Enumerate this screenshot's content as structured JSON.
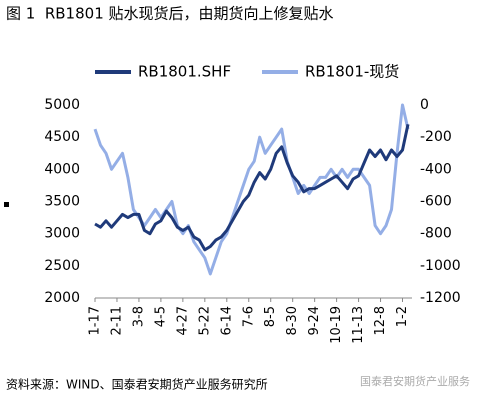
{
  "chart_data": {
    "type": "line",
    "title": "图 1  RB1801 贴水现货后，由期货向上修复贴水",
    "source": "资料来源：WIND、国泰君安期货产业服务研究所",
    "watermark": "国泰君安期货产业服务",
    "categories": [
      "1-17",
      null,
      null,
      null,
      "2-11",
      null,
      null,
      null,
      "3-8",
      null,
      null,
      null,
      "4-5",
      null,
      null,
      null,
      "4-27",
      null,
      null,
      null,
      "5-22",
      null,
      null,
      null,
      "6-14",
      null,
      null,
      null,
      "7-6",
      null,
      null,
      null,
      "8-5",
      null,
      null,
      null,
      "8-30",
      null,
      null,
      null,
      "9-24",
      null,
      null,
      null,
      "10-19",
      null,
      null,
      null,
      "11-13",
      null,
      null,
      null,
      "12-8",
      null,
      null,
      null,
      "1-2",
      null
    ],
    "series": [
      {
        "name": "RB1801.SHF",
        "color": "#1f3a7a",
        "values": [
          3150,
          3100,
          3200,
          3100,
          3200,
          3300,
          3250,
          3300,
          3300,
          3050,
          3000,
          3150,
          3200,
          3350,
          3250,
          3100,
          3050,
          3100,
          2950,
          2900,
          2750,
          2800,
          2900,
          2950,
          3050,
          3200,
          3350,
          3500,
          3600,
          3800,
          3950,
          3850,
          4000,
          4250,
          4350,
          4100,
          3900,
          3800,
          3650,
          3700,
          3700,
          3750,
          3800,
          3850,
          3900,
          3800,
          3700,
          3850,
          3900,
          4100,
          4300,
          4200,
          4300,
          4150,
          4300,
          4200,
          4300,
          4700
        ]
      },
      {
        "name": "RB1801-现货",
        "color": "#94aee6",
        "axis": "y2",
        "values": [
          -150,
          -250,
          -300,
          -400,
          -350,
          -300,
          -450,
          -650,
          -700,
          -750,
          -700,
          -650,
          -700,
          -650,
          -600,
          -750,
          -800,
          -750,
          -850,
          -900,
          -950,
          -1050,
          -950,
          -850,
          -800,
          -700,
          -600,
          -500,
          -400,
          -350,
          -200,
          -300,
          -250,
          -200,
          -150,
          -350,
          -450,
          -550,
          -500,
          -550,
          -500,
          -450,
          -450,
          -400,
          -450,
          -400,
          -450,
          -400,
          -400,
          -450,
          -500,
          -750,
          -800,
          -750,
          -650,
          -300,
          0,
          -150
        ]
      }
    ],
    "ylim": [
      2000,
      5000
    ],
    "yticks": [
      2000,
      2500,
      3000,
      3500,
      4000,
      4500,
      5000
    ],
    "y2lim": [
      -1200,
      0
    ],
    "y2ticks": [
      -1200,
      -1000,
      -800,
      -600,
      -400,
      -200,
      0
    ],
    "grid": false
  }
}
